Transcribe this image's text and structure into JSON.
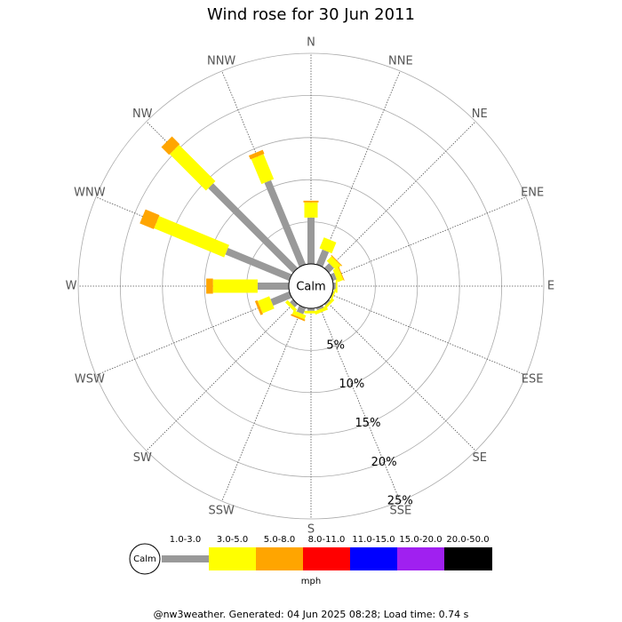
{
  "chart_data": {
    "type": "windrose",
    "title": "Wind rose for 30 Jun 2011",
    "categories": [
      "N",
      "NNE",
      "NE",
      "ENE",
      "E",
      "ESE",
      "SE",
      "SSE",
      "S",
      "SSW",
      "SW",
      "WSW",
      "W",
      "WNW",
      "NW",
      "NNW"
    ],
    "calm_label": "Calm",
    "rlim": [
      0,
      25
    ],
    "rticks": [
      {
        "value": 5,
        "label": "5%"
      },
      {
        "value": 10,
        "label": "10%"
      },
      {
        "value": 15,
        "label": "15%"
      },
      {
        "value": 20,
        "label": "20%"
      },
      {
        "value": 25,
        "label": "25%"
      }
    ],
    "series": [
      {
        "name": "1.0-3.0",
        "color": "#999999",
        "values": [
          5.5,
          1.9,
          0.8,
          0.5,
          0.3,
          0.1,
          0.2,
          0.3,
          0.3,
          0.8,
          0.5,
          2.4,
          3.7,
          8.2,
          14.2,
          10.8
        ]
      },
      {
        "name": "3.0-5.0",
        "color": "#ffff00",
        "values": [
          1.8,
          1.4,
          0.8,
          0.7,
          0.2,
          0.2,
          0.3,
          0.4,
          0.3,
          0.5,
          0.4,
          1.5,
          5.3,
          9.0,
          6.1,
          3.2
        ]
      },
      {
        "name": "5.0-8.0",
        "color": "#ffa500",
        "values": [
          0.2,
          0,
          0.1,
          0.1,
          0,
          0,
          0,
          0,
          0,
          0.2,
          0,
          0.3,
          0.8,
          1.8,
          1.3,
          0.5
        ]
      },
      {
        "name": "8.0-11.0",
        "color": "#ff0000",
        "values": [
          0,
          0,
          0,
          0,
          0,
          0,
          0,
          0,
          0,
          0,
          0,
          0,
          0,
          0,
          0,
          0
        ]
      },
      {
        "name": "11.0-15.0",
        "color": "#0000ff",
        "values": [
          0,
          0,
          0,
          0,
          0,
          0,
          0,
          0,
          0,
          0,
          0,
          0,
          0,
          0,
          0,
          0
        ]
      },
      {
        "name": "15.0-20.0",
        "color": "#a020f0",
        "values": [
          0,
          0,
          0,
          0,
          0,
          0,
          0,
          0,
          0,
          0,
          0,
          0,
          0,
          0,
          0,
          0
        ]
      },
      {
        "name": "20.0-50.0",
        "color": "#000000",
        "values": [
          0,
          0,
          0,
          0,
          0,
          0,
          0,
          0,
          0,
          0,
          0,
          0,
          0,
          0,
          0,
          0
        ]
      }
    ],
    "legend_unit": "mph",
    "footer": "@nw3weather. Generated: 04 Jun 2025 08:28; Load time: 0.74 s"
  }
}
